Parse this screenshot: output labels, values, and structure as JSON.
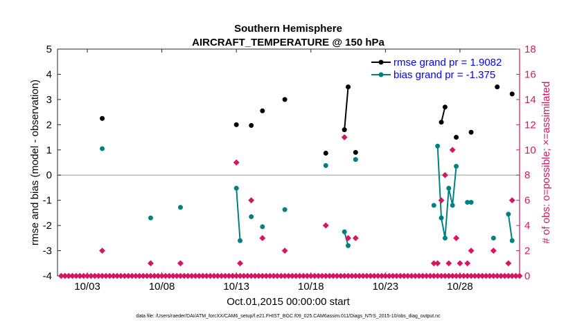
{
  "colors": {
    "rmse": "#000000",
    "bias": "#008080",
    "obs": "#d6175f",
    "legend_text": "#0000ff",
    "zero_line": "#bbbbbb"
  },
  "chart_data": {
    "type": "line",
    "title": "Southern Hemisphere",
    "subtitle": "AIRCRAFT_TEMPERATURE @ 150 hPa",
    "xlabel": "Oct.01,2015 00:00:00 start",
    "ylabel": "rmse and bias (model - observation)",
    "y2label": "# of obs: o=possible; ×=assimilated",
    "footnote": "data file: /Users/raeder/DAI/ATM_forcXX/CAM6_setup/f.e21.FHIST_BGC.f09_025.CAM6assim.011/Diags_NTrS_2015-10/obs_diag_output.nc",
    "xlim": [
      1,
      32
    ],
    "ylim": [
      -4,
      5
    ],
    "y2lim": [
      0,
      18
    ],
    "xticks": [
      3,
      8,
      13,
      18,
      23,
      28
    ],
    "xtick_labels": [
      "10/03",
      "10/08",
      "10/13",
      "10/18",
      "10/23",
      "10/28"
    ],
    "yticks": [
      -4,
      -3,
      -2,
      -1,
      0,
      1,
      2,
      3,
      4,
      5
    ],
    "ytick_labels": [
      "-4",
      "-3",
      "-2",
      "-1",
      "0",
      "1",
      "2",
      "3",
      "4",
      "5"
    ],
    "y2ticks": [
      0,
      2,
      4,
      6,
      8,
      10,
      12,
      14,
      16,
      18
    ],
    "y2tick_labels": [
      "0",
      "2",
      "4",
      "6",
      "8",
      "10",
      "12",
      "14",
      "16",
      "18"
    ],
    "legend": [
      {
        "name": "rmse",
        "label": "rmse grand pr = 1.9082"
      },
      {
        "name": "bias",
        "label": "bias grand pr = -1.375"
      }
    ],
    "series": [
      {
        "name": "rmse",
        "points": [
          [
            4.0,
            2.25
          ],
          [
            13.0,
            2.0
          ],
          [
            14.0,
            1.97
          ],
          [
            14.75,
            2.55
          ],
          [
            16.25,
            3.0
          ],
          [
            19.0,
            0.87
          ],
          [
            20.25,
            1.8
          ],
          [
            20.5,
            3.5
          ],
          [
            21.0,
            0.9
          ],
          [
            26.75,
            2.1
          ],
          [
            27.0,
            2.7
          ],
          [
            27.75,
            1.5
          ],
          [
            28.75,
            1.7
          ],
          [
            30.5,
            3.5
          ],
          [
            31.5,
            3.22
          ]
        ],
        "segments": [
          [
            [
              20.25,
              1.8
            ],
            [
              20.5,
              3.5
            ]
          ],
          [
            [
              26.75,
              2.1
            ],
            [
              27.0,
              2.7
            ]
          ]
        ]
      },
      {
        "name": "bias",
        "points": [
          [
            4.0,
            1.05
          ],
          [
            7.25,
            -1.7
          ],
          [
            9.25,
            -1.28
          ],
          [
            13.0,
            -0.52
          ],
          [
            13.25,
            -2.6
          ],
          [
            14.0,
            -1.65
          ],
          [
            14.75,
            -2.05
          ],
          [
            16.25,
            -1.37
          ],
          [
            19.0,
            0.38
          ],
          [
            20.25,
            -2.25
          ],
          [
            20.5,
            -2.8
          ],
          [
            21.0,
            0.62
          ],
          [
            26.25,
            -1.2
          ],
          [
            26.5,
            1.15
          ],
          [
            26.75,
            -1.7
          ],
          [
            27.0,
            -2.5
          ],
          [
            27.25,
            -0.52
          ],
          [
            27.5,
            -1.2
          ],
          [
            27.75,
            0.35
          ],
          [
            28.5,
            -1.08
          ],
          [
            28.75,
            -1.08
          ],
          [
            30.25,
            -2.5
          ],
          [
            31.25,
            -1.55
          ],
          [
            31.5,
            -2.6
          ]
        ],
        "segments": [
          [
            [
              13.0,
              -0.52
            ],
            [
              13.25,
              -2.6
            ]
          ],
          [
            [
              20.25,
              -2.25
            ],
            [
              20.5,
              -2.8
            ]
          ],
          [
            [
              26.5,
              1.15
            ],
            [
              26.75,
              -1.7
            ],
            [
              27.0,
              -2.5
            ],
            [
              27.25,
              -0.52
            ],
            [
              27.5,
              -1.2
            ],
            [
              27.75,
              0.35
            ]
          ],
          [
            [
              28.5,
              -1.08
            ],
            [
              28.75,
              -1.08
            ]
          ],
          [
            [
              31.25,
              -1.55
            ],
            [
              31.5,
              -2.6
            ]
          ]
        ]
      },
      {
        "name": "obs_possible",
        "points": [
          [
            4.0,
            2
          ],
          [
            7.25,
            1
          ],
          [
            9.25,
            1
          ],
          [
            13.0,
            9
          ],
          [
            13.25,
            1
          ],
          [
            14.0,
            6
          ],
          [
            14.75,
            3
          ],
          [
            16.25,
            2
          ],
          [
            19.0,
            4
          ],
          [
            20.25,
            11
          ],
          [
            20.5,
            3
          ],
          [
            21.0,
            3
          ],
          [
            26.25,
            1
          ],
          [
            26.5,
            1
          ],
          [
            26.75,
            6
          ],
          [
            27.0,
            8
          ],
          [
            27.25,
            1
          ],
          [
            27.5,
            10
          ],
          [
            27.75,
            3
          ],
          [
            28.0,
            1
          ],
          [
            28.5,
            1
          ],
          [
            28.75,
            2
          ],
          [
            30.25,
            2
          ],
          [
            31.25,
            1
          ],
          [
            31.5,
            6
          ]
        ]
      },
      {
        "name": "obs_assimilated",
        "points": [
          [
            1.25,
            0
          ],
          [
            1.5,
            0
          ],
          [
            1.75,
            0
          ],
          [
            2.0,
            0
          ],
          [
            2.25,
            0
          ],
          [
            2.5,
            0
          ],
          [
            2.75,
            0
          ],
          [
            3.0,
            0
          ],
          [
            3.25,
            0
          ],
          [
            3.5,
            0
          ],
          [
            3.75,
            0
          ],
          [
            4.0,
            0
          ],
          [
            4.25,
            0
          ],
          [
            4.5,
            0
          ],
          [
            4.75,
            0
          ],
          [
            5.0,
            0
          ],
          [
            5.25,
            0
          ],
          [
            5.5,
            0
          ],
          [
            5.75,
            0
          ],
          [
            6.0,
            0
          ],
          [
            6.25,
            0
          ],
          [
            6.5,
            0
          ],
          [
            6.75,
            0
          ],
          [
            7.0,
            0
          ],
          [
            7.25,
            0
          ],
          [
            7.5,
            0
          ],
          [
            7.75,
            0
          ],
          [
            8.0,
            0
          ],
          [
            8.25,
            0
          ],
          [
            8.5,
            0
          ],
          [
            8.75,
            0
          ],
          [
            9.0,
            0
          ],
          [
            9.25,
            0
          ],
          [
            9.5,
            0
          ],
          [
            9.75,
            0
          ],
          [
            10.0,
            0
          ],
          [
            10.25,
            0
          ],
          [
            10.5,
            0
          ],
          [
            10.75,
            0
          ],
          [
            11.0,
            0
          ],
          [
            11.25,
            0
          ],
          [
            11.5,
            0
          ],
          [
            11.75,
            0
          ],
          [
            12.0,
            0
          ],
          [
            12.25,
            0
          ],
          [
            12.5,
            0
          ],
          [
            12.75,
            0
          ],
          [
            13.0,
            0
          ],
          [
            13.25,
            0
          ],
          [
            13.5,
            0
          ],
          [
            13.75,
            0
          ],
          [
            14.0,
            0
          ],
          [
            14.25,
            0
          ],
          [
            14.5,
            0
          ],
          [
            14.75,
            0
          ],
          [
            15.0,
            0
          ],
          [
            15.25,
            0
          ],
          [
            15.5,
            0
          ],
          [
            15.75,
            0
          ],
          [
            16.0,
            0
          ],
          [
            16.25,
            0
          ],
          [
            16.5,
            0
          ],
          [
            16.75,
            0
          ],
          [
            17.0,
            0
          ],
          [
            17.25,
            0
          ],
          [
            17.5,
            0
          ],
          [
            17.75,
            0
          ],
          [
            18.0,
            0
          ],
          [
            18.25,
            0
          ],
          [
            18.5,
            0
          ],
          [
            18.75,
            0
          ],
          [
            19.0,
            0
          ],
          [
            19.25,
            0
          ],
          [
            19.5,
            0
          ],
          [
            19.75,
            0
          ],
          [
            20.0,
            0
          ],
          [
            20.25,
            0
          ],
          [
            20.5,
            0
          ],
          [
            20.75,
            0
          ],
          [
            21.0,
            0
          ],
          [
            21.25,
            0
          ],
          [
            21.5,
            0
          ],
          [
            21.75,
            0
          ],
          [
            22.0,
            0
          ],
          [
            22.25,
            0
          ],
          [
            22.5,
            0
          ],
          [
            22.75,
            0
          ],
          [
            23.0,
            0
          ],
          [
            23.25,
            0
          ],
          [
            23.5,
            0
          ],
          [
            23.75,
            0
          ],
          [
            24.0,
            0
          ],
          [
            24.25,
            0
          ],
          [
            24.5,
            0
          ],
          [
            24.75,
            0
          ],
          [
            25.0,
            0
          ],
          [
            25.25,
            0
          ],
          [
            25.5,
            0
          ],
          [
            25.75,
            0
          ],
          [
            26.0,
            0
          ],
          [
            26.25,
            0
          ],
          [
            26.5,
            0
          ],
          [
            26.75,
            0
          ],
          [
            27.0,
            0
          ],
          [
            27.25,
            0
          ],
          [
            27.5,
            0
          ],
          [
            27.75,
            0
          ],
          [
            28.0,
            0
          ],
          [
            28.25,
            0
          ],
          [
            28.5,
            0
          ],
          [
            28.75,
            0
          ],
          [
            29.0,
            0
          ],
          [
            29.25,
            0
          ],
          [
            29.5,
            0
          ],
          [
            29.75,
            0
          ],
          [
            30.0,
            0
          ],
          [
            30.25,
            0
          ],
          [
            30.5,
            0
          ],
          [
            30.75,
            0
          ],
          [
            31.0,
            0
          ],
          [
            31.25,
            0
          ],
          [
            31.5,
            0
          ],
          [
            31.75,
            0
          ],
          [
            32.0,
            0
          ]
        ]
      }
    ]
  }
}
